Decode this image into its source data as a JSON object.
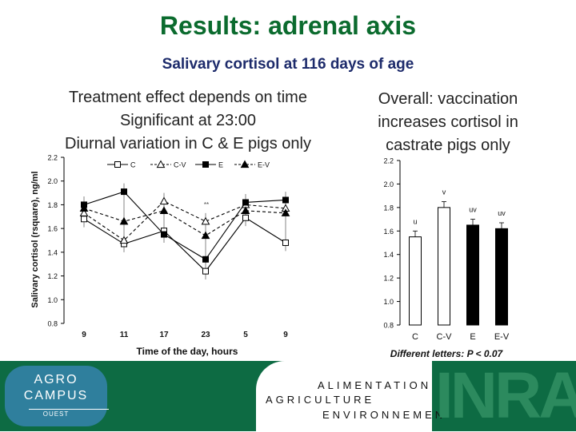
{
  "slide": {
    "title": "Results: adrenal axis",
    "subtitle": "Salivary cortisol at 116 days of age",
    "left_caption": [
      "Treatment effect depends on time",
      "Significant at 23:00",
      "Diurnal variation in C & E pigs only"
    ],
    "right_caption": [
      "Overall: vaccination",
      "increases cortisol in",
      "castrate pigs only"
    ]
  },
  "footer": {
    "logo_lines": [
      "AGRO",
      "CAMPUS",
      "OUEST"
    ],
    "band_words": [
      "ALIMENTATION",
      "AGRICULTURE",
      "ENVIRONNEMEN"
    ],
    "inra_logo": "INRA",
    "colors": {
      "footer_bg": "#0d6b43",
      "logo_bg": "#2f7f9d",
      "inra": "#2c8a5e"
    }
  },
  "chart_data": [
    {
      "type": "line",
      "xlabel": "Time of the day, hours",
      "ylabel": "Salivary cortisol (rsquare), ng/ml",
      "categories": [
        "9",
        "11",
        "17",
        "23",
        "5",
        "9"
      ],
      "ylim": [
        0.8,
        2.2
      ],
      "yticks": [
        "0.8",
        "1.0",
        "1.2",
        "1.4",
        "1.6",
        "1.8",
        "2.0",
        "2.2"
      ],
      "grid": false,
      "legend_position": "top",
      "annotations": [
        "**"
      ],
      "series": [
        {
          "name": "C",
          "marker": "open-square",
          "line": "solid",
          "values": [
            1.68,
            1.47,
            1.58,
            1.24,
            1.69,
            1.48
          ]
        },
        {
          "name": "C-V",
          "marker": "open-triangle",
          "line": "dashed",
          "values": [
            1.73,
            1.5,
            1.83,
            1.66,
            1.8,
            1.77
          ]
        },
        {
          "name": "E",
          "marker": "filled-square",
          "line": "solid",
          "values": [
            1.8,
            1.91,
            1.55,
            1.34,
            1.82,
            1.84
          ]
        },
        {
          "name": "E-V",
          "marker": "filled-triangle",
          "line": "dashed",
          "values": [
            1.77,
            1.66,
            1.75,
            1.54,
            1.75,
            1.73
          ]
        }
      ]
    },
    {
      "type": "bar",
      "xlabel": "Different letters: P < 0.07",
      "categories": [
        "C",
        "C-V",
        "E",
        "E-V"
      ],
      "values": [
        1.55,
        1.8,
        1.65,
        1.62
      ],
      "errors": [
        0.05,
        0.05,
        0.05,
        0.05
      ],
      "fills": [
        "#ffffff",
        "#ffffff",
        "#000000",
        "#000000"
      ],
      "letters": [
        "u",
        "v",
        "uv",
        "uv"
      ],
      "ylim": [
        0.8,
        2.2
      ],
      "yticks": [
        "0.8",
        "1.0",
        "1.2",
        "1.4",
        "1.6",
        "1.8",
        "2.0",
        "2.2"
      ],
      "grid": false
    }
  ]
}
